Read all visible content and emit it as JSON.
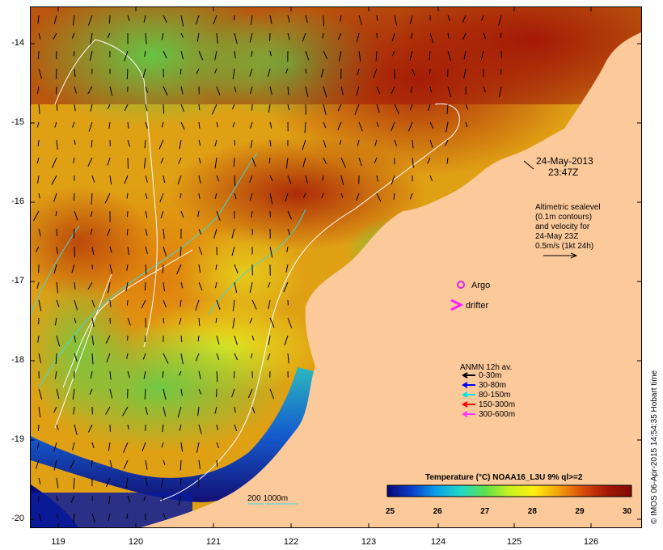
{
  "map": {
    "date_label": "24-May-2013",
    "time_label": "23:47Z",
    "altimetry_text": [
      "Altimetric sealevel",
      "(0.1m contours)",
      "and velocity for",
      "24-May 23Z",
      "0.5m/s (1kt 24h)"
    ],
    "argo_label": "Argo",
    "drifter_label": "drifter",
    "bathy_label": "200  1000m",
    "credit": "© IMOS 06-Apr-2015 14:54:35 Hobart time"
  },
  "axes": {
    "lat_labels": [
      "-14",
      "-15",
      "-16",
      "-17",
      "-18",
      "-19",
      "-20"
    ],
    "lon_labels": [
      "119",
      "120",
      "121",
      "122",
      "123",
      "124",
      "125",
      "126"
    ]
  },
  "legend": {
    "title": "ANMN 12h av.",
    "items": [
      {
        "label": "0-30m",
        "color": "#000000"
      },
      {
        "label": "30-80m",
        "color": "#0000ff"
      },
      {
        "label": "80-150m",
        "color": "#00e5e5"
      },
      {
        "label": "150-300m",
        "color": "#ff0000"
      },
      {
        "label": "300-600m",
        "color": "#ff33ff"
      }
    ]
  },
  "colorbar": {
    "title": "Temperature (°C) NOAA16_L3U 9% ql>=2",
    "ticks": [
      "25",
      "26",
      "27",
      "28",
      "29",
      "30"
    ],
    "colors": [
      "#08087a",
      "#0a3ec8",
      "#0aa0e8",
      "#22d8c8",
      "#5de04c",
      "#c8f020",
      "#ffee10",
      "#f4a20c",
      "#d84c08",
      "#a41606",
      "#7e0a04"
    ]
  },
  "colors": {
    "land": "#fcc99a",
    "argo": "#e020e0",
    "drifter": "#ff20ff",
    "contour": "#ffffff",
    "isobath": "#40d8d8"
  }
}
